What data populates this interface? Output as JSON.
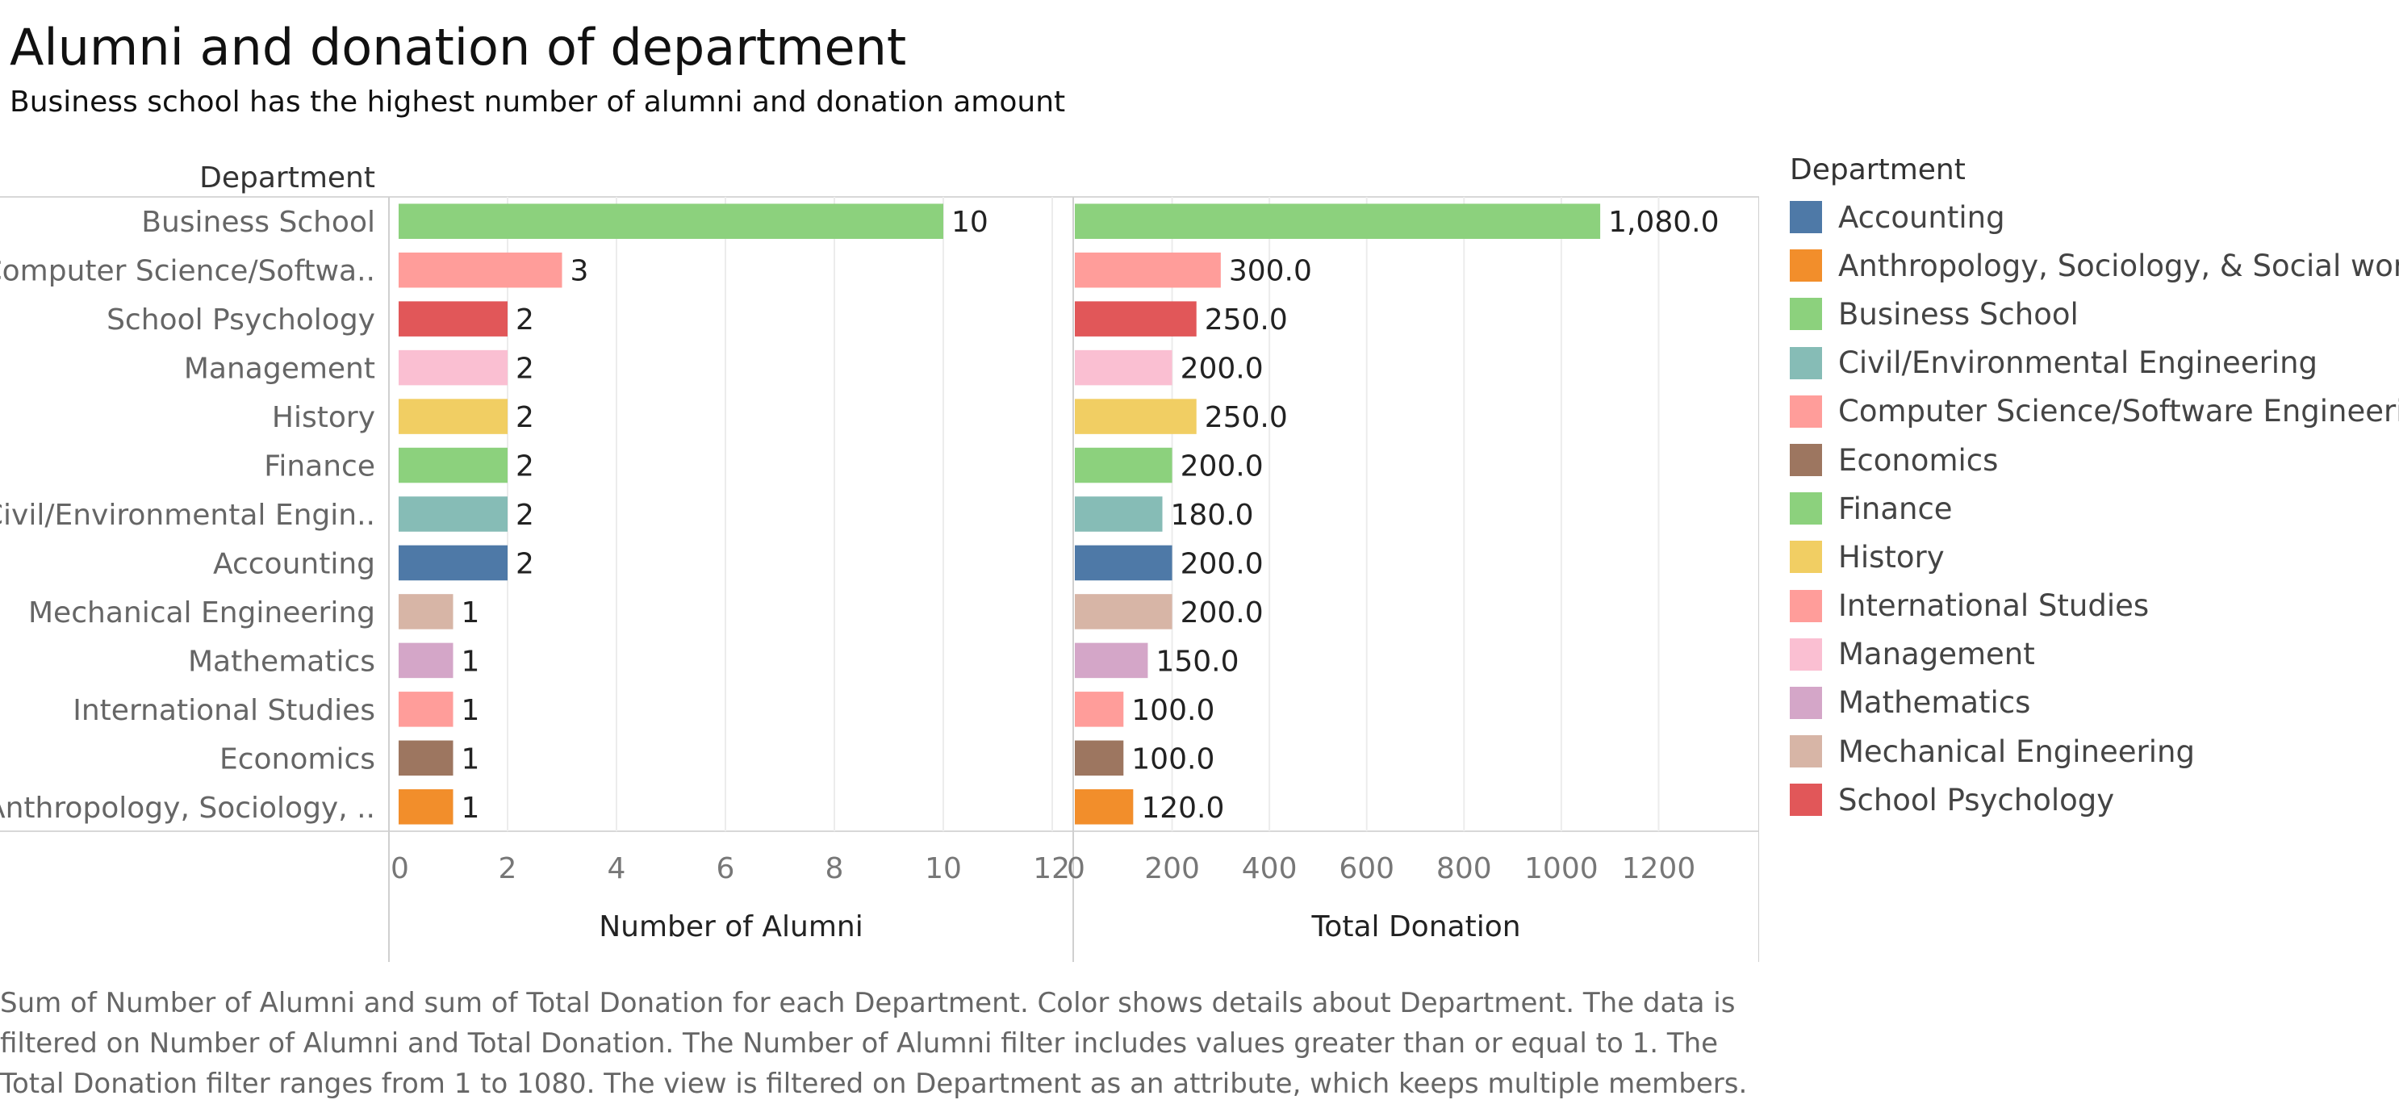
{
  "header": {
    "title": "Alumni and donation of department",
    "subtitle": "Business school has the highest number of alumni and donation amount"
  },
  "caption": "Sum of Number of Alumni and sum of Total Donation for each Department.  Color shows details about Department. The data is filtered on Number of Alumni and Total Donation. The Number of Alumni filter includes values greater than or equal to 1. The Total Donation filter ranges from 1 to 1080. The view is filtered on Department as an attribute, which keeps multiple members.",
  "legend": {
    "title": "Department",
    "items": [
      {
        "label": "Accounting",
        "color": "#4e79a7"
      },
      {
        "label": "Anthropology, Sociology, & Social work",
        "color": "#f28e2b"
      },
      {
        "label": "Business School",
        "color": "#8cd17d"
      },
      {
        "label": "Civil/Environmental Engineering",
        "color": "#86bcb6"
      },
      {
        "label": "Computer Science/Software Engineering",
        "color": "#ff9d9a"
      },
      {
        "label": "Economics",
        "color": "#9d7660"
      },
      {
        "label": "Finance",
        "color": "#8cd17d"
      },
      {
        "label": "History",
        "color": "#f1ce63"
      },
      {
        "label": "International Studies",
        "color": "#ff9d9a"
      },
      {
        "label": "Management",
        "color": "#fabfd2"
      },
      {
        "label": "Mathematics",
        "color": "#d4a6c8"
      },
      {
        "label": "Mechanical Engineering",
        "color": "#d7b5a6"
      },
      {
        "label": "School Psychology",
        "color": "#e15759"
      }
    ]
  },
  "chart_data": {
    "type": "bar",
    "orientation": "horizontal",
    "row_header": "Department",
    "categories": [
      "Business School",
      "Computer Science/Softwa..",
      "School Psychology",
      "Management",
      "History",
      "Finance",
      "Civil/Environmental Engin..",
      "Accounting",
      "Mechanical Engineering",
      "Mathematics",
      "International Studies",
      "Economics",
      "Anthropology, Sociology, .."
    ],
    "colors": [
      "#8cd17d",
      "#ff9d9a",
      "#e15759",
      "#fabfd2",
      "#f1ce63",
      "#8cd17d",
      "#86bcb6",
      "#4e79a7",
      "#d7b5a6",
      "#d4a6c8",
      "#ff9d9a",
      "#9d7660",
      "#f28e2b"
    ],
    "panels": [
      {
        "xlabel": "Number of Alumni",
        "xlim": [
          0,
          12
        ],
        "ticks": [
          0,
          2,
          4,
          6,
          8,
          10,
          12
        ],
        "tick_labels": [
          "0",
          "2",
          "4",
          "6",
          "8",
          "10",
          "12"
        ],
        "values": [
          10,
          3,
          2,
          2,
          2,
          2,
          2,
          2,
          1,
          1,
          1,
          1,
          1
        ],
        "value_labels": [
          "10",
          "3",
          "2",
          "2",
          "2",
          "2",
          "2",
          "2",
          "1",
          "1",
          "1",
          "1",
          "1"
        ]
      },
      {
        "xlabel": "Total Donation",
        "xlim": [
          0,
          1400
        ],
        "ticks": [
          0,
          200,
          400,
          600,
          800,
          1000,
          1200
        ],
        "tick_labels": [
          "0",
          "200",
          "400",
          "600",
          "800",
          "1000",
          "1200"
        ],
        "values": [
          1080,
          300,
          250,
          200,
          250,
          200,
          180,
          200,
          200,
          150,
          100,
          100,
          120
        ],
        "value_labels": [
          "1,080.0",
          "300.0",
          "250.0",
          "200.0",
          "250.0",
          "200.0",
          "180.0",
          "200.0",
          "200.0",
          "150.0",
          "100.0",
          "100.0",
          "120.0"
        ]
      }
    ],
    "grid": true,
    "legend_position": "right"
  }
}
